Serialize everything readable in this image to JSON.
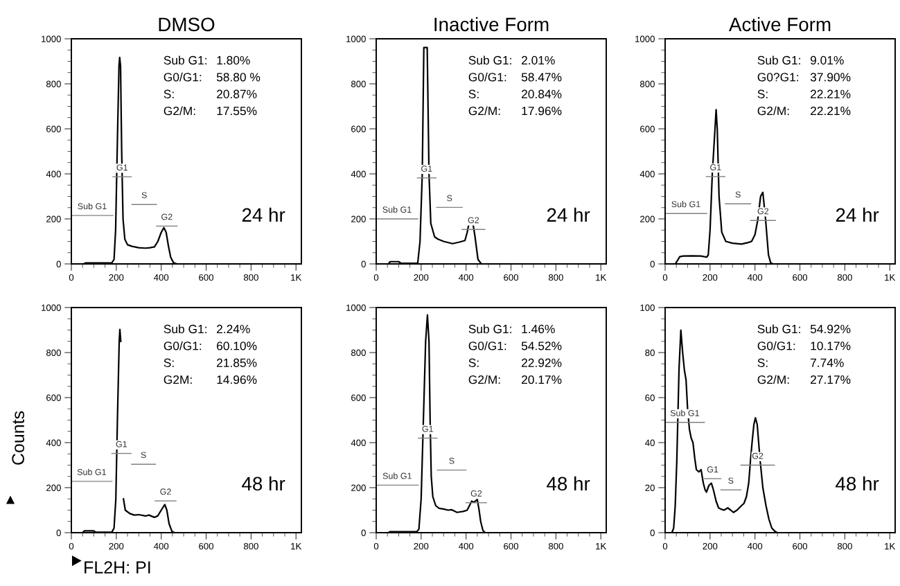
{
  "chart_data": [
    {
      "type": "line",
      "title": "DMSO",
      "xlim": [
        0,
        1024
      ],
      "ylim": [
        0,
        1000
      ],
      "xticks": [
        0,
        {
          "value": 50,
          "label": null
        },
        {
          "value": 100,
          "label": null
        },
        {
          "value": 150,
          "label": null
        },
        200,
        {
          "value": 250,
          "label": null
        },
        {
          "value": 300,
          "label": null
        },
        {
          "value": 350,
          "label": null
        },
        400,
        {
          "value": 450,
          "label": null
        },
        {
          "value": 500,
          "label": null
        },
        {
          "value": 550,
          "label": null
        },
        600,
        {
          "value": 650,
          "label": null
        },
        {
          "value": 700,
          "label": null
        },
        {
          "value": 750,
          "label": null
        },
        800,
        {
          "value": 850,
          "label": null
        },
        {
          "value": 900,
          "label": null
        },
        {
          "value": 950,
          "label": null
        },
        {
          "value": 1000,
          "label": "1K"
        }
      ],
      "yticks": [
        0,
        {
          "value": 50,
          "label": null
        },
        {
          "value": 100,
          "label": null
        },
        {
          "value": 150,
          "label": null
        },
        200,
        {
          "value": 250,
          "label": null
        },
        {
          "value": 300,
          "label": null
        },
        {
          "value": 350,
          "label": null
        },
        400,
        {
          "value": 450,
          "label": null
        },
        {
          "value": 500,
          "label": null
        },
        {
          "value": 550,
          "label": null
        },
        600,
        {
          "value": 650,
          "label": null
        },
        {
          "value": 700,
          "label": null
        },
        {
          "value": 750,
          "label": null
        },
        800,
        {
          "value": 850,
          "label": null
        },
        {
          "value": 900,
          "label": null
        },
        {
          "value": 950,
          "label": null
        },
        1000
      ],
      "series": [
        {
          "color": "#000000",
          "x": [
            0,
            55,
            62,
            180,
            190,
            197,
            205,
            212,
            215,
            219,
            224,
            230,
            238,
            250,
            270,
            300,
            330,
            350,
            370,
            385,
            400,
            412,
            422,
            432,
            442,
            455,
            470,
            1024
          ],
          "values": [
            0,
            0,
            4,
            4,
            20,
            150,
            550,
            880,
            917,
            880,
            500,
            200,
            110,
            85,
            78,
            72,
            70,
            72,
            76,
            100,
            140,
            161,
            140,
            80,
            30,
            5,
            0,
            0
          ]
        },
        {
          "name": "Sub G1",
          "color": "#808080",
          "x": [
            0,
            185
          ],
          "values": [
            215,
            215
          ]
        },
        {
          "name": "G1",
          "color": "#808080",
          "x": [
            185,
            267
          ],
          "values": [
            387,
            387
          ]
        },
        {
          "name": "S",
          "color": "#808080",
          "x": [
            270,
            379
          ],
          "values": [
            264,
            264
          ]
        },
        {
          "name": "G2",
          "color": "#808080",
          "x": [
            379,
            471
          ],
          "values": [
            168,
            168
          ]
        }
      ],
      "annotations": [
        "Sub G1:  1.80%",
        "G0/G1:    58.80 %",
        "S:  20.87%",
        "G2/M:  17.55%",
        "24 hr"
      ]
    },
    {
      "type": "line",
      "title": "Inactive Form",
      "xlim": [
        0,
        1024
      ],
      "ylim": [
        0,
        1000
      ],
      "xticks": [
        0,
        {
          "value": 50,
          "label": null
        },
        {
          "value": 100,
          "label": null
        },
        {
          "value": 150,
          "label": null
        },
        200,
        {
          "value": 250,
          "label": null
        },
        {
          "value": 300,
          "label": null
        },
        {
          "value": 350,
          "label": null
        },
        400,
        {
          "value": 450,
          "label": null
        },
        {
          "value": 500,
          "label": null
        },
        {
          "value": 550,
          "label": null
        },
        600,
        {
          "value": 650,
          "label": null
        },
        {
          "value": 700,
          "label": null
        },
        {
          "value": 750,
          "label": null
        },
        800,
        {
          "value": 850,
          "label": null
        },
        {
          "value": 900,
          "label": null
        },
        {
          "value": 950,
          "label": null
        },
        {
          "value": 1000,
          "label": "1K"
        }
      ],
      "yticks": [
        0,
        {
          "value": 50,
          "label": null
        },
        {
          "value": 100,
          "label": null
        },
        {
          "value": 150,
          "label": null
        },
        200,
        {
          "value": 250,
          "label": null
        },
        {
          "value": 300,
          "label": null
        },
        {
          "value": 350,
          "label": null
        },
        400,
        {
          "value": 450,
          "label": null
        },
        {
          "value": 500,
          "label": null
        },
        {
          "value": 550,
          "label": null
        },
        600,
        {
          "value": 650,
          "label": null
        },
        {
          "value": 700,
          "label": null
        },
        {
          "value": 750,
          "label": null
        },
        800,
        {
          "value": 850,
          "label": null
        },
        {
          "value": 900,
          "label": null
        },
        {
          "value": 950,
          "label": null
        },
        1000
      ],
      "series": [
        {
          "color": "#000000",
          "x": [
            0,
            55,
            62,
            100,
            110,
            180,
            185,
            195,
            205,
            212,
            227,
            235,
            243,
            260,
            275,
            300,
            340,
            370,
            395,
            405,
            411,
            422,
            432,
            440,
            453,
            468,
            1024
          ],
          "values": [
            0,
            0,
            10,
            10,
            3,
            3,
            5,
            100,
            400,
            961,
            961,
            400,
            180,
            120,
            110,
            100,
            90,
            97,
            104,
            140,
            171,
            null,
            171,
            120,
            20,
            0,
            0
          ]
        },
        {
          "name": "Sub G1",
          "color": "#808080",
          "x": [
            0,
            185
          ],
          "values": [
            200,
            200
          ]
        },
        {
          "name": "G1",
          "color": "#808080",
          "x": [
            183,
            266
          ],
          "values": [
            382,
            382
          ]
        },
        {
          "name": "S",
          "color": "#808080",
          "x": [
            269,
            383
          ],
          "values": [
            251,
            251
          ]
        },
        {
          "name": "G2",
          "color": "#808080",
          "x": [
            382,
            484
          ],
          "values": [
            153,
            153
          ]
        }
      ],
      "annotations": [
        "Sub G1:  2.01%",
        "G0/G1:  58.47%",
        "S:  20.84%",
        "G2/M:  17.96%",
        "24 hr"
      ]
    },
    {
      "type": "line",
      "title": "Active Form",
      "xlim": [
        0,
        1024
      ],
      "ylim": [
        0,
        1000
      ],
      "xticks": [
        0,
        {
          "value": 50,
          "label": null
        },
        {
          "value": 100,
          "label": null
        },
        {
          "value": 150,
          "label": null
        },
        200,
        {
          "value": 250,
          "label": null
        },
        {
          "value": 300,
          "label": null
        },
        {
          "value": 350,
          "label": null
        },
        400,
        {
          "value": 450,
          "label": null
        },
        {
          "value": 500,
          "label": null
        },
        {
          "value": 550,
          "label": null
        },
        600,
        {
          "value": 650,
          "label": null
        },
        {
          "value": 700,
          "label": null
        },
        {
          "value": 750,
          "label": null
        },
        800,
        {
          "value": 850,
          "label": null
        },
        {
          "value": 900,
          "label": null
        },
        {
          "value": 950,
          "label": null
        },
        {
          "value": 1000,
          "label": "1K"
        }
      ],
      "yticks": [
        0,
        {
          "value": 50,
          "label": null
        },
        {
          "value": 100,
          "label": null
        },
        {
          "value": 150,
          "label": null
        },
        200,
        {
          "value": 250,
          "label": null
        },
        {
          "value": 300,
          "label": null
        },
        {
          "value": 350,
          "label": null
        },
        400,
        {
          "value": 450,
          "label": null
        },
        {
          "value": 500,
          "label": null
        },
        {
          "value": 550,
          "label": null
        },
        600,
        {
          "value": 650,
          "label": null
        },
        {
          "value": 700,
          "label": null
        },
        {
          "value": 750,
          "label": null
        },
        800,
        {
          "value": 850,
          "label": null
        },
        {
          "value": 900,
          "label": null
        },
        {
          "value": 950,
          "label": null
        },
        1000
      ],
      "series": [
        {
          "color": "#000000",
          "x": [
            0,
            45,
            55,
            65,
            80,
            120,
            160,
            185,
            192,
            200,
            210,
            222,
            227,
            232,
            240,
            252,
            270,
            300,
            340,
            370,
            385,
            400,
            412,
            425,
            435,
            447,
            460,
            470,
            480,
            1024
          ],
          "values": [
            0,
            0,
            15,
            32,
            35,
            36,
            35,
            30,
            40,
            150,
            400,
            600,
            685,
            600,
            300,
            141,
            100,
            92,
            88,
            95,
            100,
            130,
            193,
            300,
            318,
            200,
            40,
            5,
            0,
            0
          ]
        },
        {
          "name": "Sub G1",
          "color": "#808080",
          "x": [
            0,
            185
          ],
          "values": [
            224,
            224
          ]
        },
        {
          "name": "G1",
          "color": "#808080",
          "x": [
            183,
            266
          ],
          "values": [
            388,
            388
          ]
        },
        {
          "name": "S",
          "color": "#808080",
          "x": [
            268,
            381
          ],
          "values": [
            267,
            267
          ]
        },
        {
          "name": "G2",
          "color": "#808080",
          "x": [
            381,
            491
          ],
          "values": [
            193,
            193
          ]
        }
      ],
      "annotations": [
        "Sub G1:  9.01%",
        "G0?G1:  37.90%",
        "S:  22.21%",
        "G2/M:  22.21%",
        "24 hr"
      ]
    },
    {
      "type": "line",
      "xlabel": "FL2H: PI",
      "ylabel": "Counts",
      "xlim": [
        0,
        1024
      ],
      "ylim": [
        0,
        1000
      ],
      "xticks": [
        0,
        {
          "value": 50,
          "label": null
        },
        {
          "value": 100,
          "label": null
        },
        {
          "value": 150,
          "label": null
        },
        200,
        {
          "value": 250,
          "label": null
        },
        {
          "value": 300,
          "label": null
        },
        {
          "value": 350,
          "label": null
        },
        400,
        {
          "value": 450,
          "label": null
        },
        {
          "value": 500,
          "label": null
        },
        {
          "value": 550,
          "label": null
        },
        600,
        {
          "value": 650,
          "label": null
        },
        {
          "value": 700,
          "label": null
        },
        {
          "value": 750,
          "label": null
        },
        800,
        {
          "value": 850,
          "label": null
        },
        {
          "value": 900,
          "label": null
        },
        {
          "value": 950,
          "label": null
        },
        {
          "value": 1000,
          "label": "1K"
        }
      ],
      "yticks": [
        0,
        {
          "value": 50,
          "label": null
        },
        {
          "value": 100,
          "label": null
        },
        {
          "value": 150,
          "label": null
        },
        200,
        {
          "value": 250,
          "label": null
        },
        {
          "value": 300,
          "label": null
        },
        {
          "value": 350,
          "label": null
        },
        400,
        {
          "value": 450,
          "label": null
        },
        {
          "value": 500,
          "label": null
        },
        {
          "value": 550,
          "label": null
        },
        600,
        {
          "value": 650,
          "label": null
        },
        {
          "value": 700,
          "label": null
        },
        {
          "value": 750,
          "label": null
        },
        800,
        {
          "value": 850,
          "label": null
        },
        {
          "value": 900,
          "label": null
        },
        {
          "value": 950,
          "label": null
        },
        1000
      ],
      "series": [
        {
          "color": "#000000",
          "x": [
            0,
            50,
            58,
            100,
            108,
            180,
            190,
            198,
            205,
            213,
            216,
            220,
            226,
            232,
            240,
            260,
            280,
            300,
            330,
            345,
            370,
            385,
            400,
            416,
            425,
            435,
            448,
            460,
            1024
          ],
          "values": [
            0,
            0,
            8,
            8,
            2,
            2,
            20,
            150,
            500,
            850,
            903,
            850,
            null,
            150,
            100,
            85,
            78,
            80,
            74,
            78,
            68,
            75,
            100,
            125,
            100,
            40,
            5,
            0,
            0
          ]
        },
        {
          "name": "Sub G1",
          "color": "#808080",
          "x": [
            0,
            181
          ],
          "values": [
            228,
            228
          ]
        },
        {
          "name": "G1",
          "color": "#808080",
          "x": [
            180,
            266
          ],
          "values": [
            352,
            352
          ]
        },
        {
          "name": "S",
          "color": "#808080",
          "x": [
            268,
            374
          ],
          "values": [
            304,
            304
          ]
        },
        {
          "name": "G2",
          "color": "#808080",
          "x": [
            373,
            466
          ],
          "values": [
            141,
            141
          ]
        }
      ],
      "annotations": [
        "Sub G1:   2.24%",
        "G0/G1:    60.10%",
        "S:  21.85%",
        "G2M:  14.96%",
        "48 hr"
      ]
    },
    {
      "type": "line",
      "xlim": [
        0,
        1024
      ],
      "ylim": [
        0,
        1000
      ],
      "xticks": [
        0,
        {
          "value": 50,
          "label": null
        },
        {
          "value": 100,
          "label": null
        },
        {
          "value": 150,
          "label": null
        },
        200,
        {
          "value": 250,
          "label": null
        },
        {
          "value": 300,
          "label": null
        },
        {
          "value": 350,
          "label": null
        },
        400,
        {
          "value": 450,
          "label": null
        },
        {
          "value": 500,
          "label": null
        },
        {
          "value": 550,
          "label": null
        },
        600,
        {
          "value": 650,
          "label": null
        },
        {
          "value": 700,
          "label": null
        },
        {
          "value": 750,
          "label": null
        },
        800,
        {
          "value": 850,
          "label": null
        },
        {
          "value": 900,
          "label": null
        },
        {
          "value": 950,
          "label": null
        },
        {
          "value": 1000,
          "label": "1K"
        }
      ],
      "yticks": [
        0,
        {
          "value": 50,
          "label": null
        },
        {
          "value": 100,
          "label": null
        },
        {
          "value": 150,
          "label": null
        },
        200,
        {
          "value": 250,
          "label": null
        },
        {
          "value": 300,
          "label": null
        },
        {
          "value": 350,
          "label": null
        },
        400,
        {
          "value": 450,
          "label": null
        },
        {
          "value": 500,
          "label": null
        },
        {
          "value": 550,
          "label": null
        },
        600,
        {
          "value": 650,
          "label": null
        },
        {
          "value": 700,
          "label": null
        },
        {
          "value": 750,
          "label": null
        },
        800,
        {
          "value": 850,
          "label": null
        },
        {
          "value": 900,
          "label": null
        },
        {
          "value": 950,
          "label": null
        },
        1000
      ],
      "series": [
        {
          "color": "#000000",
          "x": [
            0,
            55,
            60,
            180,
            190,
            200,
            210,
            220,
            228,
            235,
            240,
            245,
            252,
            265,
            280,
            300,
            320,
            335,
            360,
            390,
            405,
            415,
            425,
            435,
            450,
            458,
            465,
            475,
            485,
            1024
          ],
          "values": [
            0,
            0,
            4,
            4,
            15,
            150,
            500,
            850,
            967,
            850,
            500,
            250,
            160,
            120,
            108,
            105,
            100,
            102,
            90,
            95,
            100,
            120,
            140,
            135,
            147,
            100,
            50,
            10,
            0,
            0
          ]
        },
        {
          "name": "Sub G1",
          "color": "#808080",
          "x": [
            0,
            187
          ],
          "values": [
            211,
            211
          ]
        },
        {
          "name": "G1",
          "color": "#808080",
          "x": [
            187,
            271
          ],
          "values": [
            420,
            420
          ]
        },
        {
          "name": "S",
          "color": "#808080",
          "x": [
            272,
            400
          ],
          "values": [
            278,
            278
          ]
        },
        {
          "name": "G2",
          "color": "#808080",
          "x": [
            400,
            491
          ],
          "values": [
            133,
            133
          ]
        }
      ],
      "annotations": [
        "Sub G1:  1.46%",
        "G0/G1:    54.52%",
        "S:  22.92%",
        "G2/M:  20.17%",
        "48 hr"
      ]
    },
    {
      "type": "line",
      "xlim": [
        0,
        1024
      ],
      "ylim": [
        0,
        100
      ],
      "xticks": [
        0,
        {
          "value": 50,
          "label": null
        },
        {
          "value": 100,
          "label": null
        },
        {
          "value": 150,
          "label": null
        },
        200,
        {
          "value": 250,
          "label": null
        },
        {
          "value": 300,
          "label": null
        },
        {
          "value": 350,
          "label": null
        },
        400,
        {
          "value": 450,
          "label": null
        },
        {
          "value": 500,
          "label": null
        },
        {
          "value": 550,
          "label": null
        },
        600,
        {
          "value": 650,
          "label": null
        },
        {
          "value": 700,
          "label": null
        },
        {
          "value": 750,
          "label": null
        },
        800,
        {
          "value": 850,
          "label": null
        },
        {
          "value": 900,
          "label": null
        },
        {
          "value": 950,
          "label": null
        },
        {
          "value": 1000,
          "label": "1K"
        }
      ],
      "yticks": [
        0,
        {
          "value": 5,
          "label": null
        },
        {
          "value": 10,
          "label": null
        },
        {
          "value": 15,
          "label": null
        },
        20,
        {
          "value": 25,
          "label": null
        },
        {
          "value": 30,
          "label": null
        },
        {
          "value": 35,
          "label": null
        },
        40,
        {
          "value": 45,
          "label": null
        },
        {
          "value": 50,
          "label": null
        },
        {
          "value": 55,
          "label": null
        },
        60,
        {
          "value": 65,
          "label": null
        },
        {
          "value": 70,
          "label": null
        },
        {
          "value": 75,
          "label": null
        },
        80,
        {
          "value": 85,
          "label": null
        },
        {
          "value": 90,
          "label": null
        },
        {
          "value": 95,
          "label": null
        },
        100
      ],
      "series": [
        {
          "color": "#000000",
          "x": [
            0,
            30,
            38,
            45,
            52,
            62,
            70,
            78,
            86,
            93,
            100,
            108,
            116,
            124,
            132,
            139,
            150,
            160,
            170,
            178,
            184,
            195,
            206,
            215,
            227,
            238,
            248,
            262,
            279,
            292,
            304,
            320,
            340,
            351,
            362,
            372,
            380,
            387,
            395,
            402,
            410,
            418,
            423,
            435,
            449,
            462,
            475,
            490,
            500,
            1024
          ],
          "values": [
            0,
            0,
            2,
            12,
            32,
            73,
            90,
            80,
            72,
            68,
            55,
            46,
            42,
            40,
            33,
            28,
            27,
            28,
            22,
            19,
            18,
            21,
            22,
            19,
            14,
            11,
            10.5,
            10,
            11,
            10,
            9,
            10,
            12,
            13,
            16,
            22,
            32,
            40,
            48,
            51,
            48,
            38,
            32,
            20,
            12,
            6,
            2,
            0.5,
            0,
            0
          ]
        },
        {
          "name": "Sub G1",
          "color": "#808080",
          "x": [
            0,
            175
          ],
          "values": [
            49,
            49
          ]
        },
        {
          "name": "G1",
          "color": "#808080",
          "x": [
            175,
            248
          ],
          "values": [
            24,
            24
          ]
        },
        {
          "name": "S",
          "color": "#808080",
          "x": [
            248,
            337
          ],
          "values": [
            19,
            19
          ]
        },
        {
          "name": "G2",
          "color": "#808080",
          "x": [
            337,
            487
          ],
          "values": [
            30,
            30
          ]
        }
      ],
      "annotations": [
        "Sub G1:  54.92%",
        "G0/G1:   10.17%",
        "S:  7.74%",
        "G2/M:   27.17%",
        "48 hr"
      ]
    }
  ]
}
